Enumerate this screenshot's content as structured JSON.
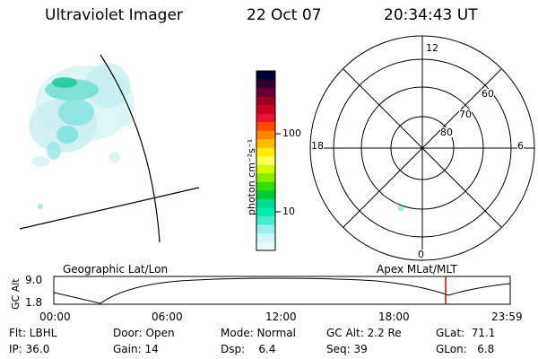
{
  "header": {
    "instrument": "Ultraviolet Imager",
    "date": "22 Oct 07",
    "time": "20:34:43 UT"
  },
  "colorbar": {
    "unit_label": "photon cm⁻²s⁻¹",
    "ticks": [
      "100",
      "10"
    ],
    "colors": [
      "#000033",
      "#330033",
      "#660033",
      "#990022",
      "#cc0022",
      "#ee1133",
      "#ff4400",
      "#ff8800",
      "#ffbb00",
      "#ffee00",
      "#ffff55",
      "#ccff00",
      "#88ee00",
      "#33dd00",
      "#00cc33",
      "#00dd88",
      "#00eeaa",
      "#44eecc",
      "#99eeee",
      "#ccf5f5",
      "#eaf7f7"
    ]
  },
  "polar": {
    "mlt_labels": [
      "12",
      "18",
      "6",
      "0"
    ],
    "lat_labels": [
      "60",
      "70",
      "80"
    ]
  },
  "timeline": {
    "y_axis_label": "GC Alt",
    "y_ticks": [
      "9.0",
      "1.8"
    ],
    "left_label": "Geographic Lat/Lon",
    "right_label": "Apex  MLat/MLT",
    "x_ticks": [
      "00:00",
      "06:00",
      "12:00",
      "18:00",
      "23:59"
    ],
    "marker_color": "#cc0000"
  },
  "footer": {
    "rows": [
      [
        "Flt: LBHL",
        "Door: Open",
        "Mode: Normal",
        "GC Alt: 2.2 Re",
        "GLat:  71.1"
      ],
      [
        "IP: 36.0",
        "Gain: 14",
        "Dsp:    6.4",
        "Seq: 39",
        "GLon:   6.8"
      ]
    ]
  }
}
